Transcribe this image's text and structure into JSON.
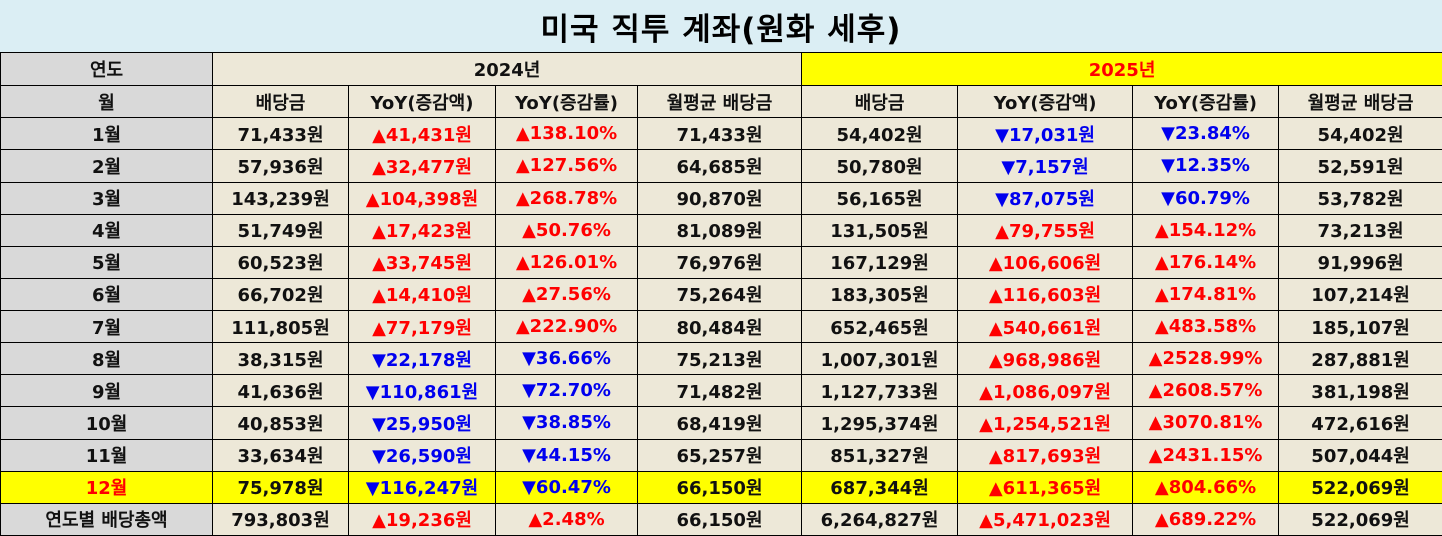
{
  "title": "미국 직투 계좌(원화 세후)",
  "header": {
    "year_label": "연도",
    "month_label": "월",
    "year_2024": "2024년",
    "year_2025": "2025년",
    "columns": [
      "배당금",
      "YoY(증감액)",
      "YoY(증감률)",
      "월평균 배당금",
      "배당금",
      "YoY(증감액)",
      "YoY(증감률)",
      "월평균 배당금"
    ]
  },
  "rows": [
    {
      "label": "1월",
      "c": [
        "71,433원",
        "▲41,431원",
        "▲138.10%",
        "71,433원",
        "54,402원",
        "▼17,031원",
        "▼23.84%",
        "54,402원"
      ]
    },
    {
      "label": "2월",
      "c": [
        "57,936원",
        "▲32,477원",
        "▲127.56%",
        "64,685원",
        "50,780원",
        "▼7,157원",
        "▼12.35%",
        "52,591원"
      ]
    },
    {
      "label": "3월",
      "c": [
        "143,239원",
        "▲104,398원",
        "▲268.78%",
        "90,870원",
        "56,165원",
        "▼87,075원",
        "▼60.79%",
        "53,782원"
      ]
    },
    {
      "label": "4월",
      "c": [
        "51,749원",
        "▲17,423원",
        "▲50.76%",
        "81,089원",
        "131,505원",
        "▲79,755원",
        "▲154.12%",
        "73,213원"
      ]
    },
    {
      "label": "5월",
      "c": [
        "60,523원",
        "▲33,745원",
        "▲126.01%",
        "76,976원",
        "167,129원",
        "▲106,606원",
        "▲176.14%",
        "91,996원"
      ]
    },
    {
      "label": "6월",
      "c": [
        "66,702원",
        "▲14,410원",
        "▲27.56%",
        "75,264원",
        "183,305원",
        "▲116,603원",
        "▲174.81%",
        "107,214원"
      ]
    },
    {
      "label": "7월",
      "c": [
        "111,805원",
        "▲77,179원",
        "▲222.90%",
        "80,484원",
        "652,465원",
        "▲540,661원",
        "▲483.58%",
        "185,107원"
      ]
    },
    {
      "label": "8월",
      "c": [
        "38,315원",
        "▼22,178원",
        "▼36.66%",
        "75,213원",
        "1,007,301원",
        "▲968,986원",
        "▲2528.99%",
        "287,881원"
      ]
    },
    {
      "label": "9월",
      "c": [
        "41,636원",
        "▼110,861원",
        "▼72.70%",
        "71,482원",
        "1,127,733원",
        "▲1,086,097원",
        "▲2608.57%",
        "381,198원"
      ]
    },
    {
      "label": "10월",
      "c": [
        "40,853원",
        "▼25,950원",
        "▼38.85%",
        "68,419원",
        "1,295,374원",
        "▲1,254,521원",
        "▲3070.81%",
        "472,616원"
      ]
    },
    {
      "label": "11월",
      "c": [
        "33,634원",
        "▼26,590원",
        "▼44.15%",
        "65,257원",
        "851,327원",
        "▲817,693원",
        "▲2431.15%",
        "507,044원"
      ]
    },
    {
      "label": "12월",
      "c": [
        "75,978원",
        "▼116,247원",
        "▼60.47%",
        "66,150원",
        "687,344원",
        "▲611,365원",
        "▲804.66%",
        "522,069원"
      ]
    }
  ],
  "total": {
    "label": "연도별 배당총액",
    "c": [
      "793,803원",
      "▲19,236원",
      "▲2.48%",
      "66,150원",
      "6,264,827원",
      "▲5,471,023원",
      "▲689.22%",
      "522,069원"
    ]
  },
  "colors": {
    "title_bg": "#dbeef4",
    "cell_bg": "#ede8d8",
    "label_bg": "#d9d9d9",
    "highlight": "#ffff00",
    "up": "#ff0000",
    "down": "#0000ee"
  }
}
